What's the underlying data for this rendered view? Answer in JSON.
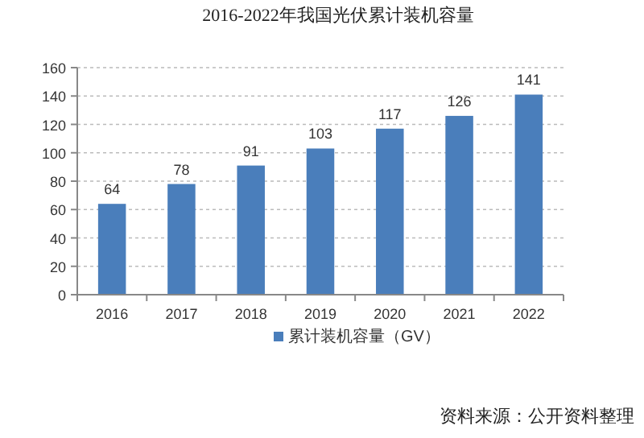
{
  "chart_data": {
    "type": "bar",
    "title": "2016-2022年我国光伏累计装机容量",
    "categories": [
      "2016",
      "2017",
      "2018",
      "2019",
      "2020",
      "2021",
      "2022"
    ],
    "series": [
      {
        "name": "累计装机容量（GV）",
        "color": "#4a7ebb",
        "values": [
          64,
          78,
          91,
          103,
          117,
          126,
          141
        ]
      }
    ],
    "ylim": [
      0,
      160
    ],
    "yticks": [
      0,
      20,
      40,
      60,
      80,
      100,
      120,
      140,
      160
    ],
    "grid": "y",
    "legend": "bottom",
    "data_labels": true,
    "annotations": [
      "资料来源：公开资料整理"
    ]
  }
}
